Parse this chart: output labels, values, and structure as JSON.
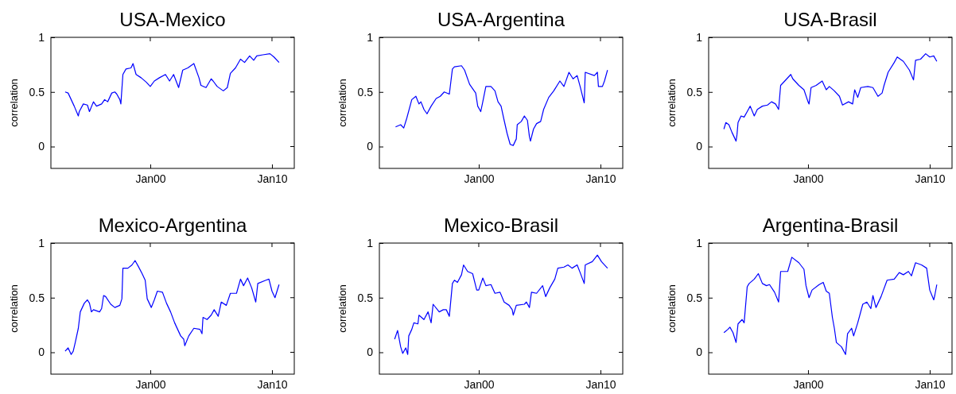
{
  "chart_data": [
    {
      "type": "line",
      "title": "USA-Mexico",
      "ylabel": "correlation",
      "color": "#0000ff",
      "xlim": [
        "1991-11",
        "2011-11"
      ],
      "ylim": [
        -0.2,
        1
      ],
      "xticks": [
        {
          "value": "2000-01",
          "label": "Jan00"
        },
        {
          "value": "2010-01",
          "label": "Jan10"
        }
      ],
      "yticks": [
        0,
        0.5,
        1
      ],
      "grid": false,
      "x": [
        "1993-01",
        "1993-04",
        "1993-08",
        "1993-10",
        "1994-02",
        "1994-03",
        "1994-07",
        "1994-11",
        "1995-01",
        "1995-05",
        "1995-08",
        "1996-01",
        "1996-04",
        "1996-07",
        "1996-11",
        "1997-02",
        "1997-04",
        "1997-07",
        "1997-08",
        "1997-10",
        "1998-01",
        "1998-06",
        "1998-08",
        "1998-11",
        "1999-04",
        "1999-09",
        "2000-01",
        "2000-05",
        "2000-10",
        "2001-04",
        "2001-08",
        "2001-12",
        "2002-05",
        "2002-09",
        "2003-02",
        "2003-08",
        "2004-01",
        "2004-03",
        "2004-08",
        "2005-01",
        "2005-03",
        "2005-07",
        "2006-01",
        "2006-05",
        "2006-08",
        "2007-01",
        "2007-06",
        "2007-10",
        "2008-03",
        "2008-07",
        "2008-10",
        "2009-04",
        "2009-11",
        "2010-03",
        "2010-08"
      ],
      "values": [
        0.5,
        0.49,
        0.41,
        0.37,
        0.28,
        0.32,
        0.39,
        0.38,
        0.32,
        0.41,
        0.37,
        0.39,
        0.43,
        0.41,
        0.49,
        0.5,
        0.48,
        0.43,
        0.39,
        0.66,
        0.71,
        0.72,
        0.76,
        0.66,
        0.63,
        0.59,
        0.55,
        0.6,
        0.63,
        0.66,
        0.6,
        0.66,
        0.54,
        0.7,
        0.72,
        0.76,
        0.63,
        0.56,
        0.54,
        0.62,
        0.6,
        0.55,
        0.51,
        0.54,
        0.67,
        0.72,
        0.8,
        0.77,
        0.83,
        0.79,
        0.83,
        0.84,
        0.85,
        0.82,
        0.77
      ]
    },
    {
      "type": "line",
      "title": "USA-Argentina",
      "ylabel": "correlation",
      "color": "#0000ff",
      "xlim": [
        "1991-11",
        "2011-11"
      ],
      "ylim": [
        -0.2,
        1
      ],
      "xticks": [
        {
          "value": "2000-01",
          "label": "Jan00"
        },
        {
          "value": "2010-01",
          "label": "Jan10"
        }
      ],
      "yticks": [
        0,
        0.5,
        1
      ],
      "grid": false,
      "x": [
        "1993-03",
        "1993-08",
        "1993-11",
        "1994-02",
        "1994-07",
        "1994-11",
        "1995-02",
        "1995-04",
        "1995-07",
        "1995-10",
        "1996-02",
        "1996-07",
        "1996-11",
        "1997-03",
        "1997-08",
        "1997-11",
        "1998-01",
        "1998-08",
        "1998-11",
        "1999-04",
        "1999-10",
        "1999-12",
        "2000-03",
        "2000-05",
        "2000-08",
        "2001-01",
        "2001-05",
        "2001-08",
        "2001-11",
        "2002-02",
        "2002-05",
        "2002-08",
        "2002-11",
        "2003-02",
        "2003-03",
        "2003-07",
        "2003-10",
        "2004-01",
        "2004-03",
        "2004-04",
        "2004-07",
        "2004-10",
        "2005-02",
        "2005-05",
        "2005-10",
        "2006-03",
        "2006-09",
        "2007-01",
        "2007-06",
        "2007-10",
        "2008-02",
        "2008-05",
        "2008-09",
        "2008-10",
        "2009-07",
        "2009-10",
        "2009-11",
        "2010-03",
        "2010-05",
        "2010-08"
      ],
      "values": [
        0.18,
        0.2,
        0.17,
        0.26,
        0.43,
        0.46,
        0.39,
        0.41,
        0.34,
        0.3,
        0.37,
        0.44,
        0.46,
        0.5,
        0.48,
        0.71,
        0.73,
        0.74,
        0.7,
        0.57,
        0.49,
        0.37,
        0.32,
        0.41,
        0.55,
        0.55,
        0.51,
        0.41,
        0.37,
        0.24,
        0.12,
        0.02,
        0.01,
        0.07,
        0.2,
        0.23,
        0.28,
        0.24,
        0.09,
        0.05,
        0.16,
        0.21,
        0.23,
        0.34,
        0.45,
        0.51,
        0.6,
        0.55,
        0.68,
        0.62,
        0.65,
        0.55,
        0.4,
        0.68,
        0.65,
        0.68,
        0.55,
        0.55,
        0.6,
        0.7
      ]
    },
    {
      "type": "line",
      "title": "USA-Brasil",
      "ylabel": "correlation",
      "color": "#0000ff",
      "xlim": [
        "1991-11",
        "2011-11"
      ],
      "ylim": [
        -0.2,
        1
      ],
      "xticks": [
        {
          "value": "2000-01",
          "label": "Jan00"
        },
        {
          "value": "2010-01",
          "label": "Jan10"
        }
      ],
      "yticks": [
        0,
        0.5,
        1
      ],
      "grid": false,
      "x": [
        "1993-02",
        "1993-04",
        "1993-07",
        "1993-10",
        "1994-02",
        "1994-03",
        "1994-04",
        "1994-07",
        "1994-10",
        "1995-01",
        "1995-04",
        "1995-08",
        "1995-11",
        "1996-04",
        "1996-09",
        "1997-01",
        "1997-05",
        "1997-08",
        "1997-10",
        "1998-02",
        "1998-08",
        "1998-10",
        "1999-04",
        "1999-09",
        "2000-01",
        "2000-02",
        "2000-04",
        "2000-09",
        "2001-03",
        "2001-07",
        "2001-10",
        "2002-03",
        "2002-08",
        "2002-11",
        "2003-05",
        "2003-09",
        "2003-11",
        "2004-02",
        "2004-05",
        "2004-12",
        "2005-05",
        "2005-10",
        "2006-02",
        "2006-04",
        "2006-08",
        "2007-02",
        "2007-05",
        "2007-11",
        "2008-05",
        "2008-09",
        "2008-11",
        "2009-04",
        "2009-09",
        "2010-01",
        "2010-05",
        "2010-08"
      ],
      "values": [
        0.16,
        0.22,
        0.2,
        0.13,
        0.05,
        0.11,
        0.22,
        0.28,
        0.27,
        0.32,
        0.37,
        0.28,
        0.34,
        0.37,
        0.38,
        0.41,
        0.39,
        0.34,
        0.56,
        0.6,
        0.66,
        0.62,
        0.56,
        0.52,
        0.41,
        0.39,
        0.54,
        0.56,
        0.6,
        0.52,
        0.55,
        0.51,
        0.46,
        0.38,
        0.41,
        0.39,
        0.52,
        0.45,
        0.54,
        0.55,
        0.54,
        0.46,
        0.49,
        0.56,
        0.68,
        0.77,
        0.82,
        0.78,
        0.7,
        0.61,
        0.79,
        0.8,
        0.85,
        0.82,
        0.83,
        0.78
      ]
    },
    {
      "type": "line",
      "title": "Mexico-Argentina",
      "ylabel": "correlation",
      "color": "#0000ff",
      "xlim": [
        "1991-11",
        "2011-11"
      ],
      "ylim": [
        -0.2,
        1
      ],
      "xticks": [
        {
          "value": "2000-01",
          "label": "Jan00"
        },
        {
          "value": "2010-01",
          "label": "Jan10"
        }
      ],
      "yticks": [
        0,
        0.5,
        1
      ],
      "grid": false,
      "x": [
        "1993-01",
        "1993-04",
        "1993-07",
        "1993-09",
        "1993-11",
        "1994-02",
        "1994-04",
        "1994-08",
        "1994-11",
        "1995-01",
        "1995-03",
        "1995-05",
        "1995-11",
        "1996-01",
        "1996-03",
        "1996-05",
        "1996-10",
        "1997-02",
        "1997-07",
        "1997-09",
        "1997-10",
        "1998-03",
        "1998-07",
        "1998-10",
        "1999-01",
        "1999-05",
        "1999-08",
        "1999-10",
        "2000-02",
        "2000-05",
        "2000-08",
        "2001-01",
        "2001-05",
        "2001-09",
        "2002-01",
        "2002-07",
        "2002-10",
        "2002-11",
        "2003-03",
        "2003-08",
        "2004-02",
        "2004-04",
        "2004-05",
        "2004-09",
        "2005-01",
        "2005-04",
        "2005-08",
        "2005-11",
        "2006-04",
        "2006-08",
        "2007-02",
        "2007-06",
        "2007-09",
        "2008-01",
        "2008-05",
        "2008-09",
        "2008-11",
        "2009-07",
        "2009-10",
        "2010-01",
        "2010-04",
        "2010-08"
      ],
      "values": [
        0.01,
        0.04,
        -0.02,
        0.01,
        0.09,
        0.22,
        0.37,
        0.45,
        0.48,
        0.45,
        0.37,
        0.39,
        0.37,
        0.4,
        0.52,
        0.51,
        0.44,
        0.41,
        0.43,
        0.49,
        0.77,
        0.77,
        0.8,
        0.84,
        0.79,
        0.72,
        0.66,
        0.49,
        0.41,
        0.48,
        0.56,
        0.55,
        0.45,
        0.37,
        0.27,
        0.15,
        0.12,
        0.06,
        0.15,
        0.22,
        0.21,
        0.17,
        0.32,
        0.3,
        0.34,
        0.39,
        0.33,
        0.46,
        0.43,
        0.54,
        0.54,
        0.67,
        0.61,
        0.68,
        0.59,
        0.46,
        0.63,
        0.66,
        0.67,
        0.56,
        0.5,
        0.62
      ]
    },
    {
      "type": "line",
      "title": "Mexico-Brasil",
      "ylabel": "correlation",
      "color": "#0000ff",
      "xlim": [
        "1991-11",
        "2011-11"
      ],
      "ylim": [
        -0.2,
        1
      ],
      "xticks": [
        {
          "value": "2000-01",
          "label": "Jan00"
        },
        {
          "value": "2010-01",
          "label": "Jan10"
        }
      ],
      "yticks": [
        0,
        0.5,
        1
      ],
      "grid": false,
      "x": [
        "1993-02",
        "1993-05",
        "1993-08",
        "1993-10",
        "1994-01",
        "1994-03",
        "1994-04",
        "1994-07",
        "1994-09",
        "1995-01",
        "1995-02",
        "1995-07",
        "1995-11",
        "1996-02",
        "1996-04",
        "1996-10",
        "1997-02",
        "1997-05",
        "1997-08",
        "1997-11",
        "1998-01",
        "1998-04",
        "1998-08",
        "1998-10",
        "1999-02",
        "1999-07",
        "1999-11",
        "2000-01",
        "2000-05",
        "2000-08",
        "2001-01",
        "2001-05",
        "2001-10",
        "2002-02",
        "2002-07",
        "2002-10",
        "2002-11",
        "2003-02",
        "2003-10",
        "2003-12",
        "2004-03",
        "2004-05",
        "2004-10",
        "2005-04",
        "2005-07",
        "2005-11",
        "2006-04",
        "2006-07",
        "2007-01",
        "2007-05",
        "2007-09",
        "2008-02",
        "2008-05",
        "2008-09",
        "2008-10",
        "2009-05",
        "2009-10",
        "2010-02",
        "2010-08"
      ],
      "values": [
        0.12,
        0.2,
        0.05,
        -0.01,
        0.04,
        -0.02,
        0.15,
        0.21,
        0.27,
        0.26,
        0.34,
        0.3,
        0.37,
        0.27,
        0.44,
        0.37,
        0.39,
        0.39,
        0.33,
        0.63,
        0.66,
        0.64,
        0.71,
        0.8,
        0.74,
        0.72,
        0.57,
        0.57,
        0.68,
        0.61,
        0.62,
        0.54,
        0.55,
        0.46,
        0.43,
        0.39,
        0.34,
        0.43,
        0.44,
        0.46,
        0.41,
        0.55,
        0.54,
        0.61,
        0.51,
        0.59,
        0.67,
        0.77,
        0.78,
        0.8,
        0.77,
        0.8,
        0.73,
        0.63,
        0.8,
        0.83,
        0.89,
        0.83,
        0.77
      ]
    },
    {
      "type": "line",
      "title": "Argentina-Brasil",
      "ylabel": "correlation",
      "color": "#0000ff",
      "xlim": [
        "1991-11",
        "2011-11"
      ],
      "ylim": [
        -0.2,
        1
      ],
      "xticks": [
        {
          "value": "2000-01",
          "label": "Jan00"
        },
        {
          "value": "2010-01",
          "label": "Jan10"
        }
      ],
      "yticks": [
        0,
        0.5,
        1
      ],
      "grid": false,
      "x": [
        "1993-02",
        "1993-06",
        "1993-08",
        "1993-11",
        "1994-02",
        "1994-04",
        "1994-08",
        "1994-10",
        "1995-01",
        "1995-03",
        "1995-08",
        "1995-12",
        "1996-04",
        "1996-08",
        "1996-11",
        "1997-04",
        "1997-08",
        "1997-10",
        "1998-05",
        "1998-09",
        "1999-04",
        "1999-09",
        "1999-11",
        "2000-02",
        "2000-05",
        "2000-12",
        "2001-04",
        "2001-07",
        "2001-10",
        "2002-01",
        "2002-03",
        "2002-05",
        "2002-10",
        "2003-02",
        "2003-04",
        "2003-08",
        "2003-10",
        "2004-02",
        "2004-07",
        "2004-11",
        "2005-03",
        "2005-05",
        "2005-08",
        "2006-01",
        "2006-07",
        "2007-02",
        "2007-07",
        "2007-11",
        "2008-04",
        "2008-07",
        "2008-11",
        "2009-05",
        "2009-10",
        "2010-01",
        "2010-05",
        "2010-06",
        "2010-08"
      ],
      "values": [
        0.18,
        0.21,
        0.23,
        0.18,
        0.09,
        0.26,
        0.3,
        0.27,
        0.6,
        0.63,
        0.67,
        0.72,
        0.63,
        0.61,
        0.62,
        0.55,
        0.46,
        0.74,
        0.74,
        0.87,
        0.82,
        0.76,
        0.61,
        0.5,
        0.57,
        0.62,
        0.64,
        0.56,
        0.54,
        0.32,
        0.22,
        0.09,
        0.05,
        -0.02,
        0.17,
        0.22,
        0.15,
        0.27,
        0.44,
        0.46,
        0.4,
        0.52,
        0.41,
        0.51,
        0.66,
        0.67,
        0.73,
        0.71,
        0.74,
        0.7,
        0.82,
        0.8,
        0.77,
        0.57,
        0.48,
        0.52,
        0.62
      ]
    }
  ]
}
